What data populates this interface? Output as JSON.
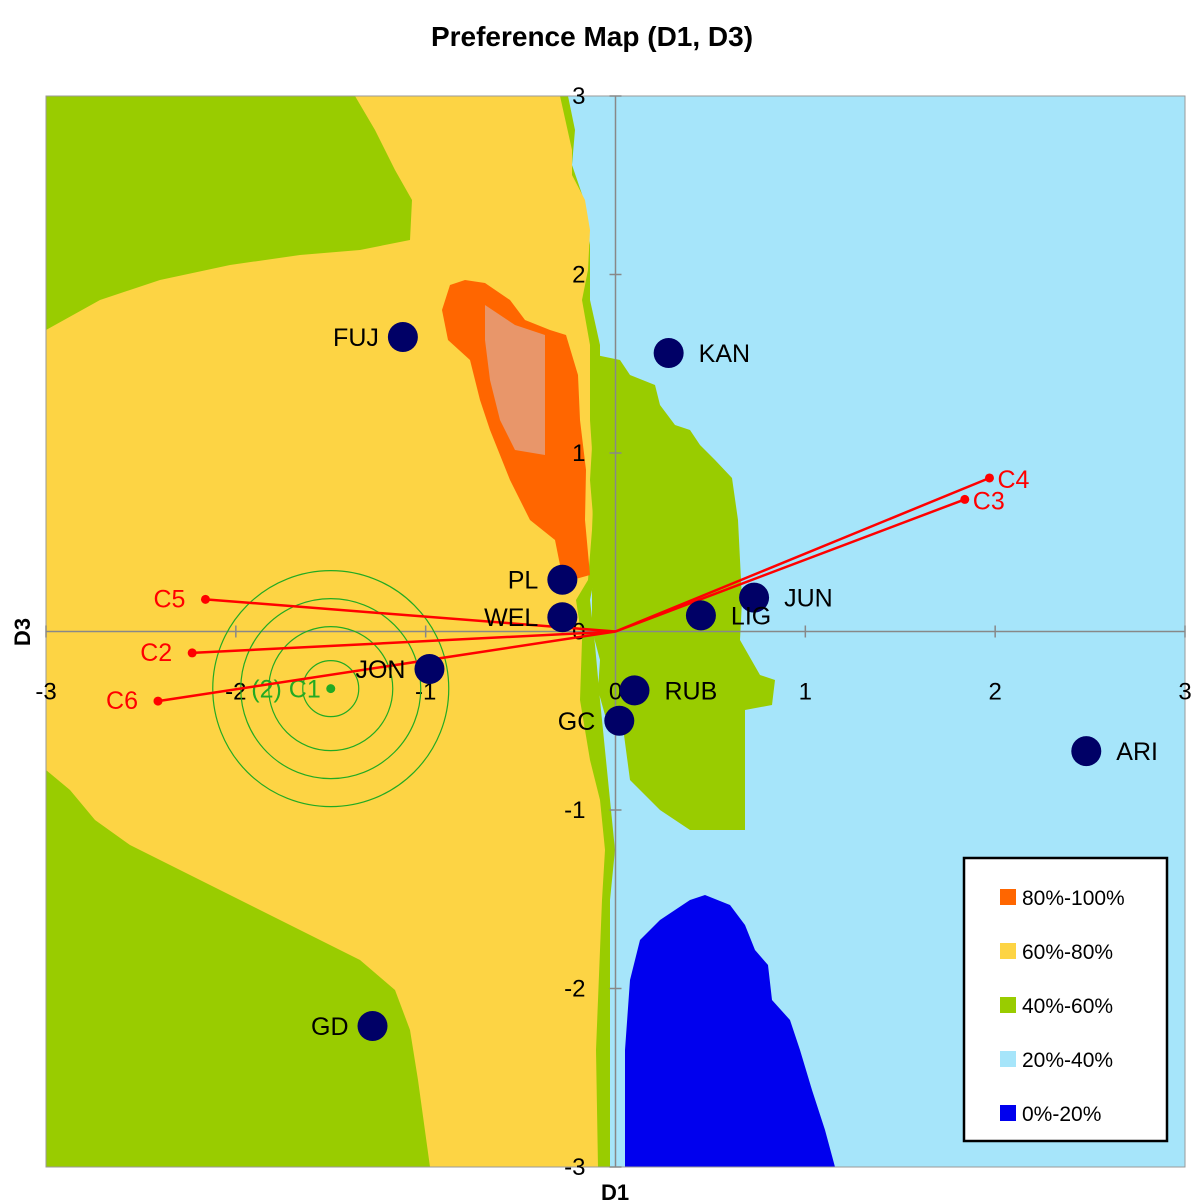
{
  "chart_data": {
    "type": "scatter",
    "title": "Preference Map (D1, D3)",
    "xlabel": "D1",
    "ylabel": "D3",
    "xlim": [
      -3,
      3
    ],
    "ylim": [
      -3,
      3
    ],
    "x_ticks": [
      "-3",
      "-2",
      "-1",
      "0",
      "1",
      "2",
      "3"
    ],
    "y_ticks": [
      "3",
      "2",
      "1",
      "0",
      "-1",
      "-2",
      "-3"
    ],
    "grid": false,
    "legend_position": "bottom-right",
    "colors": {
      "c80_100": "#ff6600",
      "c80_100_core": "#e8966a",
      "c60_80": "#fdd444",
      "c40_60": "#99cc00",
      "c20_40": "#a6e5fa",
      "c0_20": "#0000ee",
      "products": "#000066",
      "consumer_vectors": "#ff0000",
      "ideal_point": "#22aa22"
    },
    "legend": [
      {
        "label": "80%-100%",
        "color": "#ff6600"
      },
      {
        "label": "60%-80%",
        "color": "#fdd444"
      },
      {
        "label": "40%-60%",
        "color": "#99cc00"
      },
      {
        "label": "20%-40%",
        "color": "#a6e5fa"
      },
      {
        "label": "0%-20%",
        "color": "#0000ee"
      }
    ],
    "products": [
      {
        "label": "FUJ",
        "x": -1.12,
        "y": 1.65
      },
      {
        "label": "KAN",
        "x": 0.28,
        "y": 1.56
      },
      {
        "label": "PL",
        "x": -0.28,
        "y": 0.29
      },
      {
        "label": "WEL",
        "x": -0.28,
        "y": 0.08
      },
      {
        "label": "JUN",
        "x": 0.73,
        "y": 0.19
      },
      {
        "label": "LIG",
        "x": 0.45,
        "y": 0.09
      },
      {
        "label": "JON",
        "x": -0.98,
        "y": -0.21
      },
      {
        "label": "RUB",
        "x": 0.1,
        "y": -0.33
      },
      {
        "label": "GC",
        "x": 0.02,
        "y": -0.5
      },
      {
        "label": "ARI",
        "x": 2.48,
        "y": -0.67
      },
      {
        "label": "GD",
        "x": -1.28,
        "y": -2.21
      }
    ],
    "consumer_vectors": [
      {
        "label": "C4",
        "x": 1.97,
        "y": 0.86
      },
      {
        "label": "C3",
        "x": 1.84,
        "y": 0.74
      },
      {
        "label": "C5",
        "x": -2.16,
        "y": 0.18
      },
      {
        "label": "C2",
        "x": -2.23,
        "y": -0.12
      },
      {
        "label": "C6",
        "x": -2.41,
        "y": -0.39
      }
    ],
    "ideal_points": [
      {
        "label": "(2) C1",
        "x": -1.5,
        "y": -0.32
      }
    ]
  }
}
